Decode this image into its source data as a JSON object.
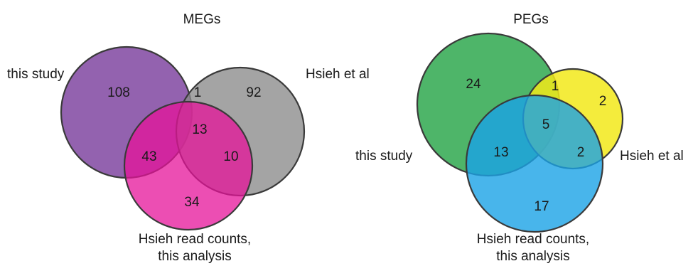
{
  "diagrams": [
    {
      "title": "MEGs",
      "sets": [
        {
          "name": "this study",
          "color": "#7b3f9e",
          "opacity": 0.82
        },
        {
          "name": "Hsieh et al",
          "color": "#8a8a8a",
          "opacity": 0.78
        },
        {
          "name_line1": "Hsieh read counts,",
          "name_line2": "this analysis",
          "color": "#e5139a",
          "opacity": 0.75
        }
      ],
      "regions": {
        "a_only": "108",
        "ab": "1",
        "b_only": "92",
        "abc": "13",
        "ac": "43",
        "bc": "10",
        "c_only": "34"
      }
    },
    {
      "title": "PEGs",
      "sets": [
        {
          "name": "this study",
          "color": "#2fa84f",
          "opacity": 0.85
        },
        {
          "name": "Hsieh et al",
          "color": "#f2e91a",
          "opacity": 0.85
        },
        {
          "name_line1": "Hsieh read counts,",
          "name_line2": "this analysis",
          "color": "#1aa3e6",
          "opacity": 0.8
        }
      ],
      "regions": {
        "a_only": "24",
        "ab": "1",
        "b_only": "2",
        "abc": "5",
        "ac": "13",
        "bc": "2",
        "c_only": "17"
      }
    }
  ]
}
